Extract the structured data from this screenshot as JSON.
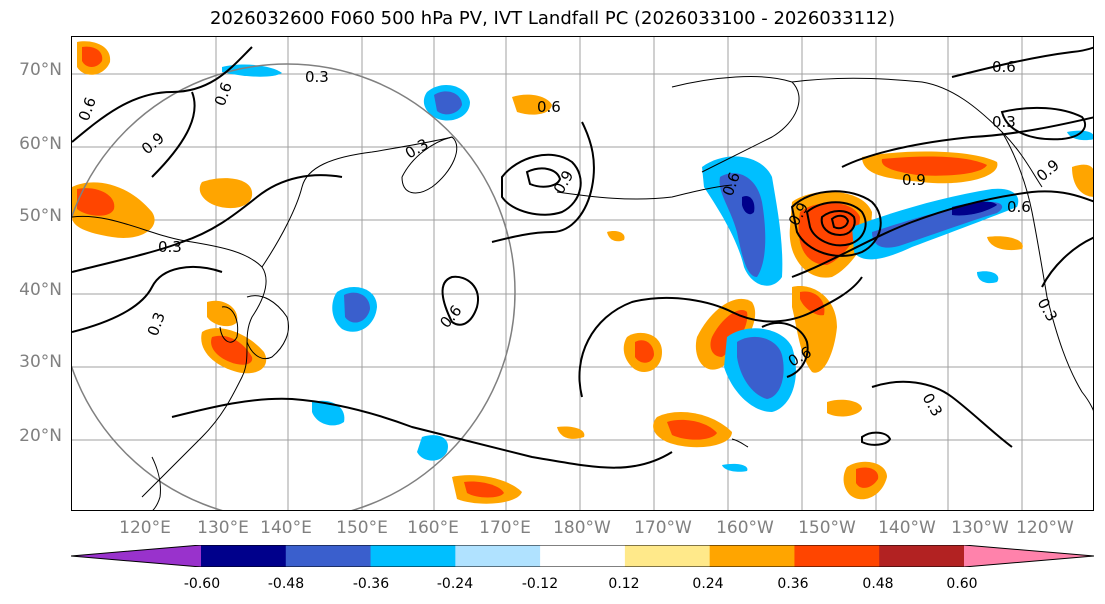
{
  "title": "2026032600 F060 500 hPa PV, IVT Landfall PC (2026033100 - 2026033112)",
  "latitude_labels": [
    "70°N",
    "60°N",
    "50°N",
    "40°N",
    "30°N",
    "20°N"
  ],
  "longitude_labels": [
    "120°E",
    "130°E",
    "140°E",
    "150°E",
    "160°E",
    "170°E",
    "180°W",
    "170°W",
    "160°W",
    "150°W",
    "140°W",
    "130°W",
    "120°W"
  ],
  "contour_labels": [
    "0.3",
    "0.6",
    "0.9"
  ],
  "colorbar": {
    "ticks": [
      "-0.60",
      "-0.48",
      "-0.36",
      "-0.24",
      "-0.12",
      "0.12",
      "0.24",
      "0.36",
      "0.48",
      "0.60"
    ],
    "colors": [
      "#9932CC",
      "#00008B",
      "#3A5FCD",
      "#00BFFF",
      "#B0E2FF",
      "#FFFFFF",
      "#FFE98A",
      "#FFA500",
      "#FF4500",
      "#B22222",
      "#FF82AB"
    ]
  },
  "colors": {
    "contour": "#000000",
    "coastline": "#000000",
    "gridline": "#A0A0A0",
    "highlight_circle": "#808080"
  }
}
